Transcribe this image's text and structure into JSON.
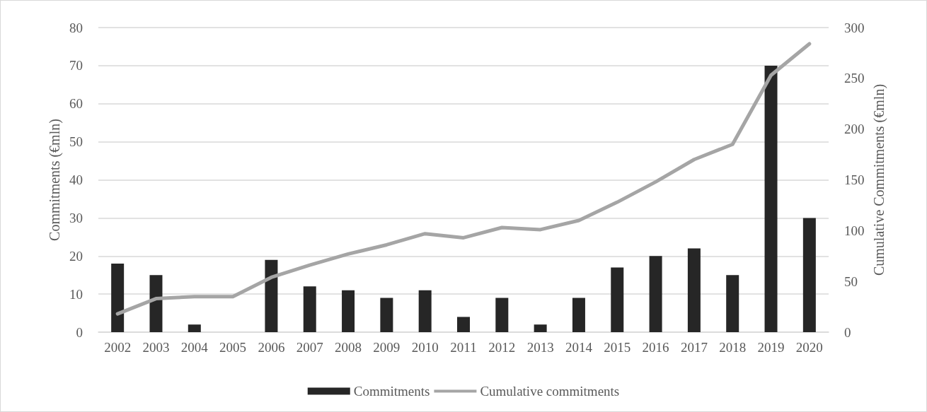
{
  "chart_data": {
    "type": "bar",
    "categories": [
      "2002",
      "2003",
      "2004",
      "2005",
      "2006",
      "2007",
      "2008",
      "2009",
      "2010",
      "2011",
      "2012",
      "2013",
      "2014",
      "2015",
      "2016",
      "2017",
      "2018",
      "2019",
      "2020"
    ],
    "series": [
      {
        "name": "Commitments",
        "color": "#262626",
        "values": [
          18,
          15,
          2,
          0,
          19,
          12,
          11,
          9,
          11,
          4,
          9,
          2,
          9,
          17,
          20,
          22,
          15,
          70,
          30
        ]
      },
      {
        "name": "Cumulative commitments",
        "type": "line",
        "axis": "y2",
        "color": "#a5a5a5",
        "values": [
          18,
          33,
          35,
          35,
          54,
          66,
          77,
          86,
          97,
          93,
          103,
          101,
          110,
          128,
          148,
          170,
          185,
          253,
          284
        ]
      }
    ],
    "ylabel": "Commitments (€mln)",
    "y2label": "Cumulative Commitments (€mln)",
    "ylim": [
      0,
      80
    ],
    "yticks": [
      0,
      10,
      20,
      30,
      40,
      50,
      60,
      70,
      80
    ],
    "y2lim": [
      0,
      300
    ],
    "y2ticks": [
      0,
      50,
      100,
      150,
      200,
      250,
      300
    ],
    "grid": "y",
    "legend": "bottom",
    "marker": "none"
  }
}
